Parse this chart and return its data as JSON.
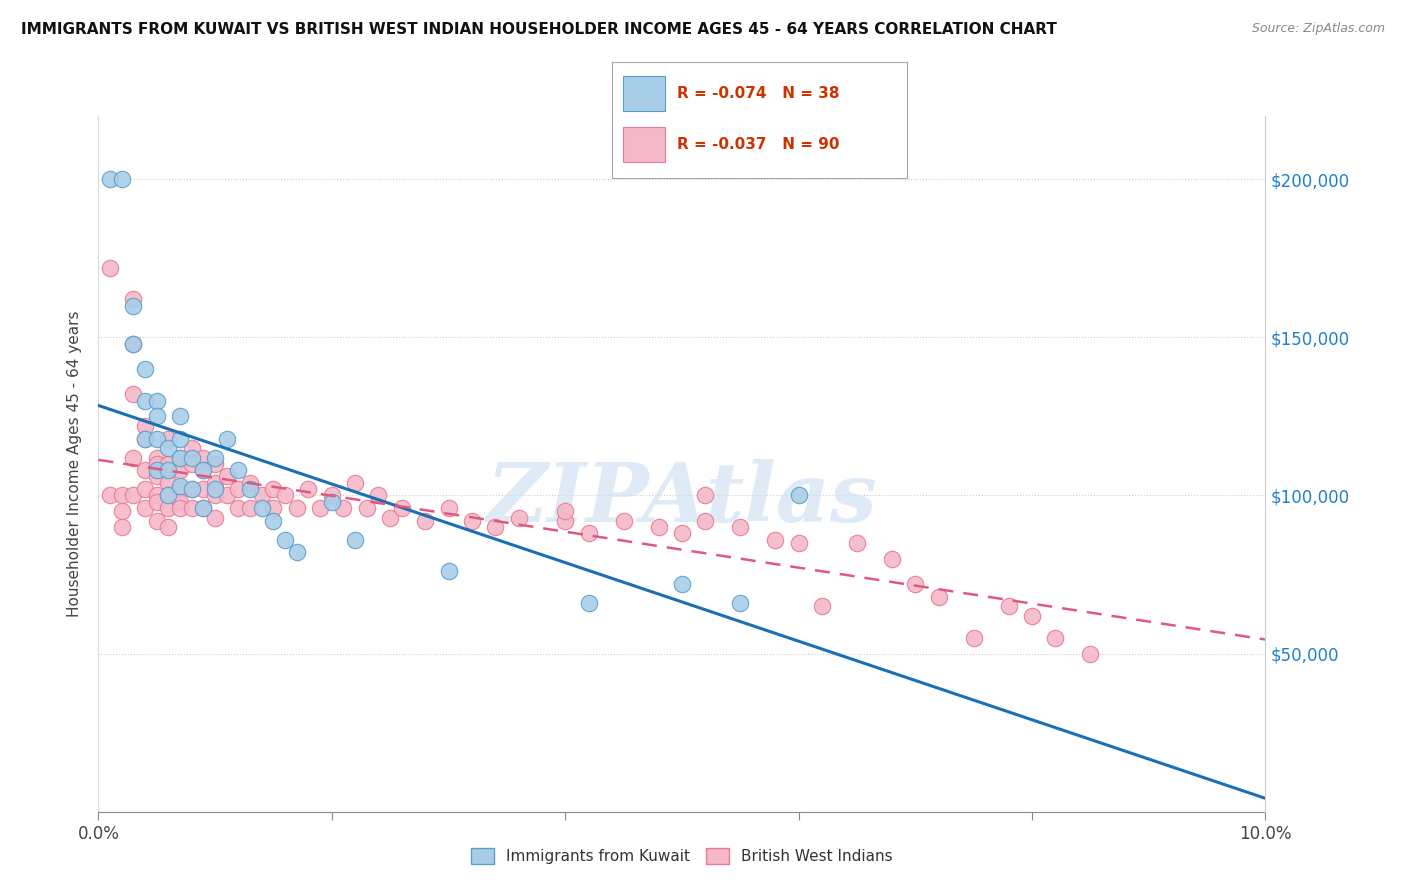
{
  "title": "IMMIGRANTS FROM KUWAIT VS BRITISH WEST INDIAN HOUSEHOLDER INCOME AGES 45 - 64 YEARS CORRELATION CHART",
  "source": "Source: ZipAtlas.com",
  "ylabel": "Householder Income Ages 45 - 64 years",
  "xlim": [
    0.0,
    0.1
  ],
  "ylim": [
    0,
    220000
  ],
  "xticks": [
    0.0,
    0.02,
    0.04,
    0.06,
    0.08,
    0.1
  ],
  "xticklabels": [
    "0.0%",
    "",
    "",
    "",
    "",
    "10.0%"
  ],
  "yticks": [
    0,
    50000,
    100000,
    150000,
    200000
  ],
  "right_yticklabels": [
    "",
    "$50,000",
    "$100,000",
    "$150,000",
    "$200,000"
  ],
  "legend_blue_label": "R = -0.074   N = 38",
  "legend_pink_label": "R = -0.037   N = 90",
  "legend_xlabel1": "Immigrants from Kuwait",
  "legend_xlabel2": "British West Indians",
  "blue_color": "#a8cde8",
  "pink_color": "#f4b8c8",
  "blue_edge_color": "#5a9fc8",
  "pink_edge_color": "#e87898",
  "blue_line_color": "#1a6fb5",
  "pink_line_color": "#e05880",
  "watermark": "ZIPAtlas",
  "watermark_color": "#c8dff0",
  "blue_points_x": [
    0.001,
    0.002,
    0.003,
    0.003,
    0.004,
    0.004,
    0.004,
    0.005,
    0.005,
    0.005,
    0.005,
    0.006,
    0.006,
    0.006,
    0.007,
    0.007,
    0.007,
    0.007,
    0.008,
    0.008,
    0.009,
    0.009,
    0.01,
    0.01,
    0.011,
    0.012,
    0.013,
    0.014,
    0.015,
    0.016,
    0.017,
    0.02,
    0.022,
    0.03,
    0.042,
    0.05,
    0.055,
    0.06
  ],
  "blue_points_y": [
    200000,
    200000,
    160000,
    148000,
    140000,
    130000,
    118000,
    130000,
    125000,
    118000,
    108000,
    115000,
    108000,
    100000,
    125000,
    118000,
    112000,
    103000,
    112000,
    102000,
    108000,
    96000,
    112000,
    102000,
    118000,
    108000,
    102000,
    96000,
    92000,
    86000,
    82000,
    98000,
    86000,
    76000,
    66000,
    72000,
    66000,
    100000
  ],
  "pink_points_x": [
    0.001,
    0.001,
    0.002,
    0.002,
    0.002,
    0.003,
    0.003,
    0.003,
    0.003,
    0.003,
    0.004,
    0.004,
    0.004,
    0.004,
    0.004,
    0.005,
    0.005,
    0.005,
    0.005,
    0.005,
    0.005,
    0.006,
    0.006,
    0.006,
    0.006,
    0.006,
    0.006,
    0.007,
    0.007,
    0.007,
    0.007,
    0.007,
    0.008,
    0.008,
    0.008,
    0.008,
    0.009,
    0.009,
    0.009,
    0.009,
    0.01,
    0.01,
    0.01,
    0.01,
    0.011,
    0.011,
    0.012,
    0.012,
    0.013,
    0.013,
    0.014,
    0.015,
    0.015,
    0.016,
    0.017,
    0.018,
    0.019,
    0.02,
    0.021,
    0.022,
    0.023,
    0.024,
    0.025,
    0.026,
    0.028,
    0.03,
    0.032,
    0.034,
    0.036,
    0.04,
    0.042,
    0.045,
    0.048,
    0.05,
    0.052,
    0.055,
    0.058,
    0.06,
    0.062,
    0.065,
    0.068,
    0.07,
    0.072,
    0.075,
    0.078,
    0.08,
    0.082,
    0.085,
    0.052,
    0.04
  ],
  "pink_points_y": [
    172000,
    100000,
    100000,
    95000,
    90000,
    162000,
    148000,
    132000,
    112000,
    100000,
    122000,
    118000,
    108000,
    102000,
    96000,
    112000,
    110000,
    106000,
    100000,
    98000,
    92000,
    118000,
    110000,
    104000,
    100000,
    96000,
    90000,
    112000,
    108000,
    102000,
    98000,
    96000,
    115000,
    110000,
    102000,
    96000,
    112000,
    108000,
    102000,
    96000,
    110000,
    104000,
    100000,
    93000,
    106000,
    100000,
    102000,
    96000,
    104000,
    96000,
    100000,
    102000,
    96000,
    100000,
    96000,
    102000,
    96000,
    100000,
    96000,
    104000,
    96000,
    100000,
    93000,
    96000,
    92000,
    96000,
    92000,
    90000,
    93000,
    92000,
    88000,
    92000,
    90000,
    88000,
    92000,
    90000,
    86000,
    85000,
    65000,
    85000,
    80000,
    72000,
    68000,
    55000,
    65000,
    62000,
    55000,
    50000,
    100000,
    95000
  ]
}
